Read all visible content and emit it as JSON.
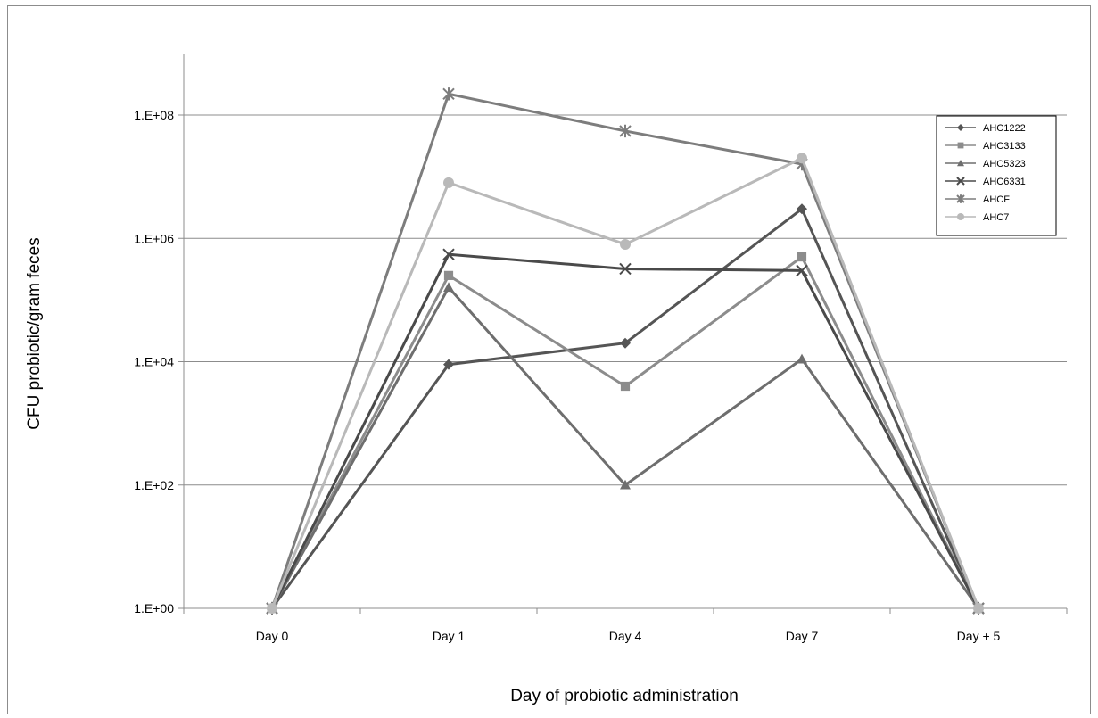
{
  "chart_data": {
    "type": "line",
    "title": "",
    "xlabel": "Day of  probiotic administration",
    "ylabel": "CFU probiotic/gram feces",
    "y_scale": "log",
    "ylim": [
      1,
      1000000000
    ],
    "y_ticks": [
      1,
      100,
      10000,
      1000000,
      100000000
    ],
    "y_tick_labels": [
      "1.E+00",
      "1.E+02",
      "1.E+04",
      "1.E+06",
      "1.E+08"
    ],
    "categories": [
      "Day 0",
      "Day 1",
      "Day 4",
      "Day 7",
      "Day + 5"
    ],
    "grid": "horizontal",
    "legend_position": "right",
    "series": [
      {
        "name": "AHC1222",
        "marker": "diamond",
        "color": "#555555",
        "values": [
          1,
          9000,
          20000,
          3000000,
          1
        ]
      },
      {
        "name": "AHC3133",
        "marker": "square",
        "color": "#8c8c8c",
        "values": [
          1,
          250000,
          4000,
          500000,
          1
        ]
      },
      {
        "name": "AHC5323",
        "marker": "triangle",
        "color": "#6e6e6e",
        "values": [
          1,
          160000,
          100,
          11000,
          1
        ]
      },
      {
        "name": "AHC6331",
        "marker": "x",
        "color": "#4a4a4a",
        "values": [
          1,
          550000,
          320000,
          300000,
          1
        ]
      },
      {
        "name": "AHCF",
        "marker": "star",
        "color": "#7d7d7d",
        "values": [
          1,
          220000000,
          55000000,
          16000000,
          1
        ]
      },
      {
        "name": "AHC7",
        "marker": "circle",
        "color": "#b9b9b9",
        "values": [
          1,
          8000000,
          800000,
          20000000,
          1
        ]
      }
    ]
  }
}
